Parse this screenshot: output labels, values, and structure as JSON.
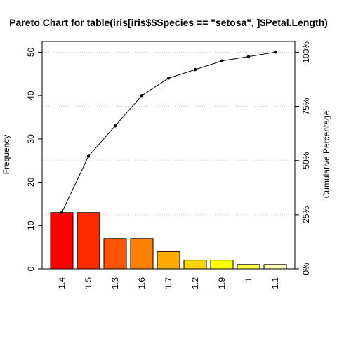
{
  "chart_data": {
    "type": "bar",
    "title": "Pareto Chart for table(iris[iris$$Species == \"setosa\", ]$Petal.Length)",
    "xlabel": "",
    "ylabel": "Frequency",
    "y2label": "Cumulative Percentage",
    "categories": [
      "1.4",
      "1.5",
      "1.3",
      "1.6",
      "1.7",
      "1.2",
      "1.9",
      "1",
      "1.1"
    ],
    "values": [
      13,
      13,
      7,
      7,
      4,
      2,
      2,
      1,
      1
    ],
    "cumulative_values": [
      13,
      26,
      33,
      40,
      44,
      46,
      48,
      49,
      50
    ],
    "cumulative_percent": [
      26,
      52,
      66,
      80,
      88,
      92,
      96,
      98,
      100
    ],
    "bar_colors": [
      "#ff0000",
      "#ff2a00",
      "#ff5500",
      "#ff8000",
      "#ffaa00",
      "#ffd500",
      "#ffff00",
      "#ffff40",
      "#ffffbf"
    ],
    "ylim": [
      0,
      52.5
    ],
    "yticks": [
      "0",
      "10",
      "20",
      "30",
      "40",
      "50"
    ],
    "y2ticks": [
      "0%",
      "25%",
      "50%",
      "75%",
      "100%"
    ],
    "grid": true
  }
}
